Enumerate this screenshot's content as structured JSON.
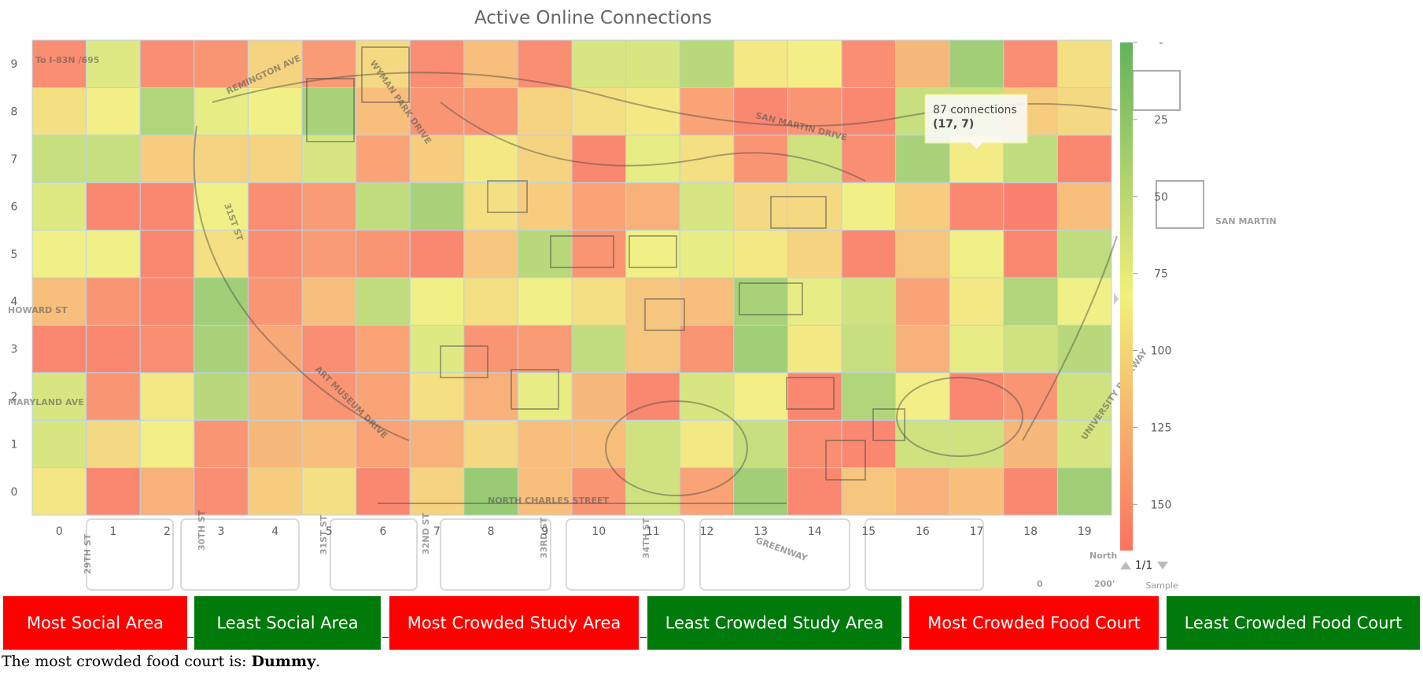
{
  "chart_data": {
    "type": "heatmap",
    "title": "Active Online Connections",
    "x_categories": [
      "0",
      "1",
      "2",
      "3",
      "4",
      "5",
      "6",
      "7",
      "8",
      "9",
      "10",
      "11",
      "12",
      "13",
      "14",
      "15",
      "16",
      "17",
      "18",
      "19"
    ],
    "y_categories": [
      "0",
      "1",
      "2",
      "3",
      "4",
      "5",
      "6",
      "7",
      "8",
      "9"
    ],
    "values": [
      [
        92,
        160,
        130,
        155,
        110,
        95,
        160,
        105,
        25,
        120,
        150,
        60,
        140,
        30,
        160,
        115,
        130,
        120,
        160,
        30
      ],
      [
        65,
        100,
        85,
        150,
        125,
        120,
        140,
        130,
        100,
        120,
        120,
        60,
        90,
        55,
        155,
        160,
        60,
        60,
        125,
        65
      ],
      [
        65,
        150,
        90,
        45,
        125,
        150,
        140,
        95,
        130,
        75,
        125,
        160,
        65,
        85,
        160,
        40,
        85,
        160,
        150,
        60
      ],
      [
        160,
        160,
        155,
        35,
        135,
        155,
        140,
        70,
        150,
        145,
        50,
        115,
        150,
        30,
        90,
        55,
        130,
        75,
        60,
        45
      ],
      [
        120,
        150,
        160,
        30,
        150,
        120,
        50,
        80,
        95,
        80,
        95,
        115,
        120,
        35,
        75,
        60,
        140,
        90,
        40,
        80
      ],
      [
        80,
        80,
        160,
        95,
        155,
        145,
        150,
        160,
        115,
        45,
        150,
        80,
        75,
        90,
        105,
        160,
        115,
        80,
        160,
        50
      ],
      [
        70,
        160,
        160,
        80,
        155,
        145,
        50,
        35,
        95,
        110,
        140,
        130,
        65,
        100,
        100,
        80,
        110,
        160,
        165,
        120
      ],
      [
        55,
        55,
        110,
        105,
        105,
        65,
        140,
        110,
        90,
        105,
        160,
        75,
        95,
        150,
        60,
        155,
        35,
        87,
        50,
        160
      ],
      [
        95,
        85,
        40,
        75,
        80,
        35,
        120,
        150,
        150,
        105,
        95,
        90,
        140,
        160,
        150,
        160,
        55,
        55,
        110,
        100
      ],
      [
        155,
        70,
        155,
        150,
        105,
        145,
        100,
        155,
        120,
        155,
        65,
        65,
        45,
        90,
        85,
        155,
        125,
        30,
        155,
        95
      ]
    ],
    "color_axis": {
      "min": 0,
      "max": 165,
      "ticks": [
        "-",
        "25",
        "50",
        "75",
        "100",
        "125",
        "150"
      ]
    },
    "colors": {
      "low": "#63b25e",
      "mid": "#f2f07a",
      "high": "#fa7360"
    },
    "legend_placement": "right",
    "legend_pager": "1/1",
    "scale_note": "Sample",
    "tooltip": {
      "line1": "87 connections",
      "line2": "(17, 7)",
      "x": 17,
      "y": 7
    },
    "background": "campus map",
    "map_labels": [
      "REMINGTON AVE",
      "WYMAN PARK DRIVE",
      "SAN MARTIN DRIVE",
      "31ST ST",
      "HOWARD ST",
      "MARYLAND AVE",
      "ART MUSEUM DRIVE",
      "NORTH CHARLES STREET",
      "UNIVERSITY PARKWAY",
      "29TH ST",
      "30TH ST",
      "31ST ST",
      "32ND ST",
      "33RD ST",
      "34TH ST",
      "GREENWAY",
      "SAN MARTIN",
      "To I-83N /695",
      "North",
      "0",
      "200'"
    ]
  },
  "buttons": [
    {
      "label": "Most Social Area",
      "color": "#ff0000"
    },
    {
      "label": "Least Social Area",
      "color": "#007a0a"
    },
    {
      "label": "Most Crowded Study Area",
      "color": "#ff0000"
    },
    {
      "label": "Least Crowded Study Area",
      "color": "#007a0a"
    },
    {
      "label": "Most Crowded Food Court",
      "color": "#ff0000"
    },
    {
      "label": "Least Crowded Food Court",
      "color": "#007a0a"
    }
  ],
  "separator": "_",
  "status": {
    "prefix": "The most crowded food court is: ",
    "value": "Dummy",
    "suffix": "."
  }
}
